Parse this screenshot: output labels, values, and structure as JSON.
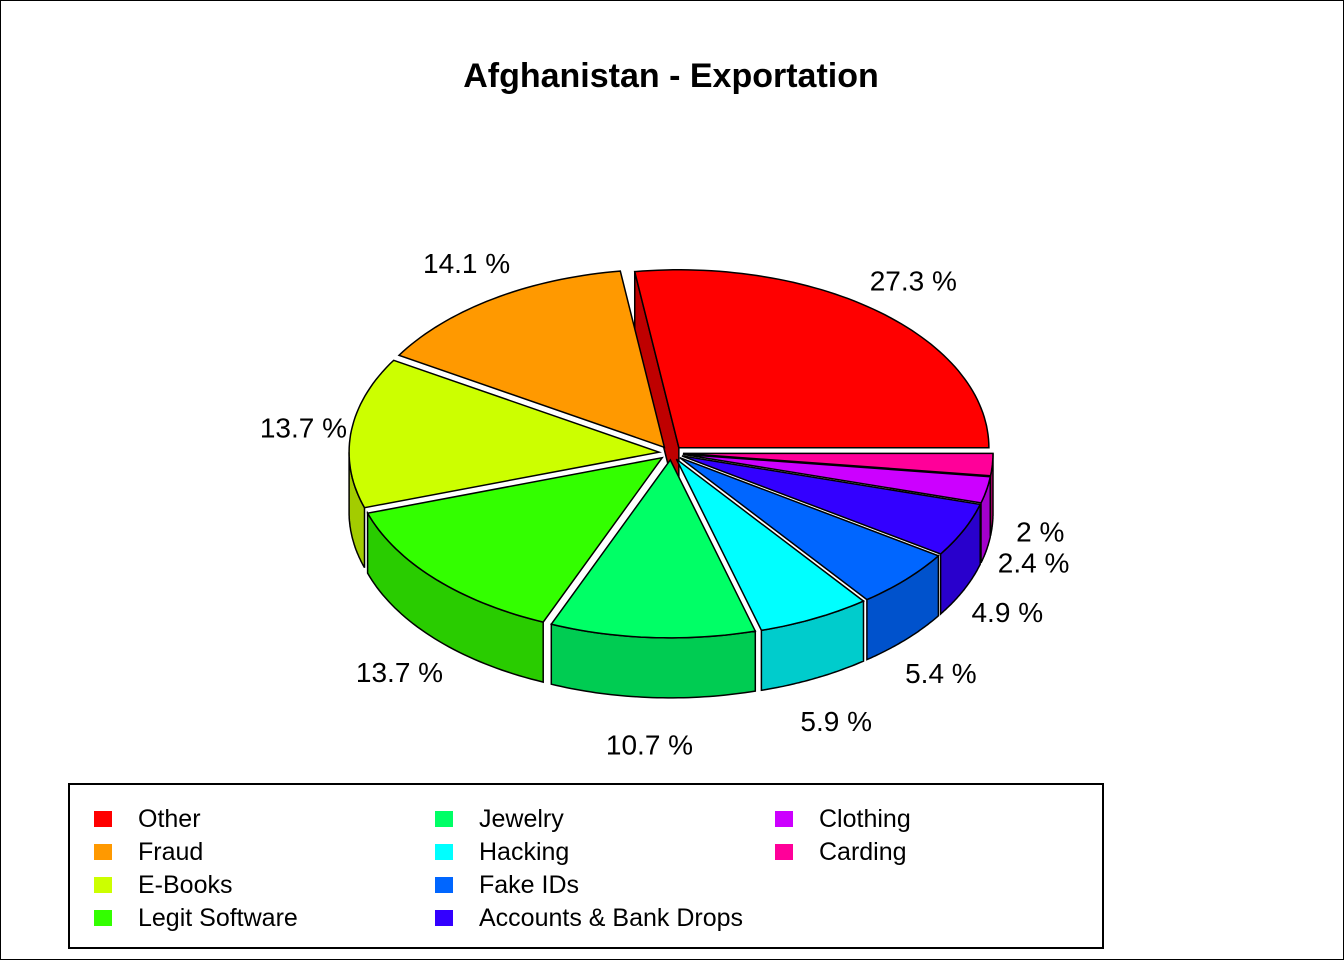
{
  "chart_data": {
    "type": "pie",
    "title": "Afghanistan - Exportation",
    "style": "3d-exploded",
    "categories": [
      "Other",
      "Fraud",
      "E-Books",
      "Legit Software",
      "Jewelry",
      "Hacking",
      "Fake IDs",
      "Accounts & Bank Drops",
      "Clothing",
      "Carding"
    ],
    "values": [
      27.3,
      14.1,
      13.7,
      13.7,
      10.7,
      5.9,
      5.4,
      4.9,
      2.4,
      2.0
    ],
    "labels": [
      "27.3 %",
      "14.1 %",
      "13.7 %",
      "13.7 %",
      "10.7 %",
      "5.9 %",
      "5.4 %",
      "4.9 %",
      "2.4 %",
      "2 %"
    ],
    "colors": [
      "#FF0000",
      "#FF9900",
      "#CCFF00",
      "#33FF00",
      "#00FF66",
      "#00FFFF",
      "#0066FF",
      "#3300FF",
      "#CC00FF",
      "#FF0099"
    ],
    "legend_position": "bottom"
  }
}
